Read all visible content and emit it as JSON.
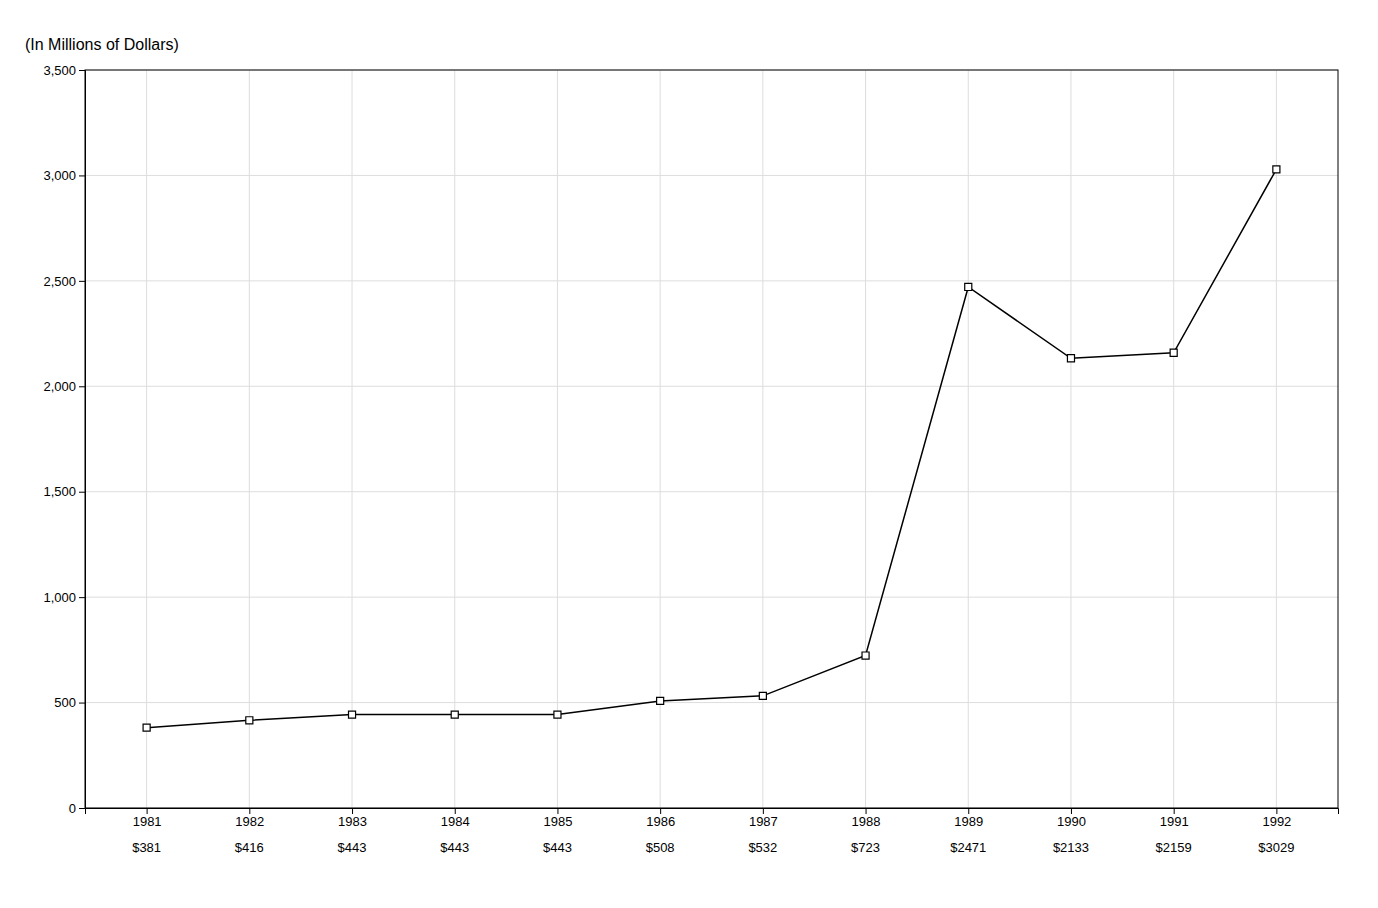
{
  "chart_data": {
    "type": "line",
    "y_label": "(In Millions of Dollars)",
    "x": [
      1981,
      1982,
      1983,
      1984,
      1985,
      1986,
      1987,
      1988,
      1989,
      1990,
      1991,
      1992
    ],
    "values": [
      381,
      416,
      443,
      443,
      443,
      508,
      532,
      723,
      2471,
      2133,
      2159,
      3029
    ],
    "value_labels": [
      "$381",
      "$416",
      "$443",
      "$443",
      "$443",
      "$508",
      "$532",
      "$723",
      "$2471",
      "$2133",
      "$2159",
      "$3029"
    ],
    "data_labels": true,
    "color": "#000000",
    "marker": "square",
    "xlim": [
      1980.4,
      1992.6
    ],
    "xticks": [
      1981,
      1982,
      1983,
      1984,
      1985,
      1986,
      1987,
      1988,
      1989,
      1990,
      1991,
      1992
    ],
    "ylim": [
      0,
      3500
    ],
    "yticks": [
      0,
      500,
      {
        "value": 1000,
        "label": "1,000"
      },
      {
        "value": 1500,
        "label": "1,500"
      },
      {
        "value": 2000,
        "label": "2,000"
      },
      {
        "value": 2500,
        "label": "2,500"
      },
      {
        "value": 3000,
        "label": "3,000"
      },
      {
        "value": 3500,
        "label": "3,500"
      }
    ],
    "grid": true
  }
}
